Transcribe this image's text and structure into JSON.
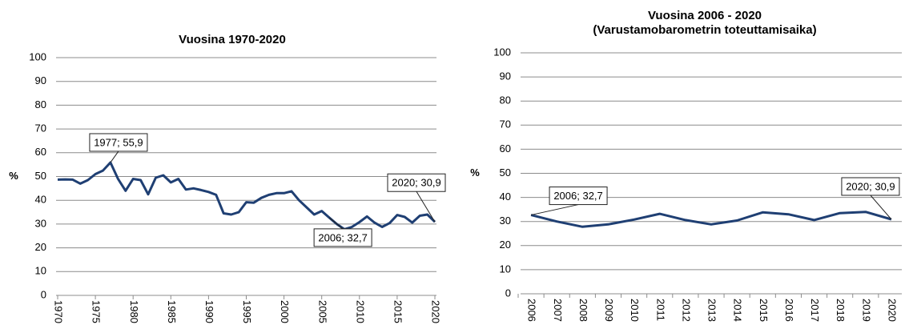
{
  "chart_data": [
    {
      "type": "line",
      "title": "Vuosina 1970-2020",
      "ylabel": "%",
      "x": [
        1970,
        1971,
        1972,
        1973,
        1974,
        1975,
        1976,
        1977,
        1978,
        1979,
        1980,
        1981,
        1982,
        1983,
        1984,
        1985,
        1986,
        1987,
        1988,
        1989,
        1990,
        1991,
        1992,
        1993,
        1994,
        1995,
        1996,
        1997,
        1998,
        1999,
        2000,
        2001,
        2002,
        2003,
        2004,
        2005,
        2006,
        2007,
        2008,
        2009,
        2010,
        2011,
        2012,
        2013,
        2014,
        2015,
        2016,
        2017,
        2018,
        2019,
        2020
      ],
      "values": [
        48.7,
        48.8,
        48.7,
        47,
        48.5,
        51,
        52.5,
        55.9,
        49,
        44,
        49,
        48.5,
        42.5,
        49.5,
        50.5,
        47.5,
        49,
        44.5,
        45,
        44.3,
        43.5,
        42.3,
        34.5,
        34,
        35,
        39.2,
        39,
        41,
        42.3,
        43,
        43,
        43.8,
        40,
        37,
        34,
        35.5,
        32.7,
        30,
        27.8,
        28.8,
        30.8,
        33.2,
        30.6,
        28.8,
        30.4,
        33.8,
        33,
        30.6,
        33.5,
        34,
        30.9
      ],
      "color": "#1f3f73",
      "xlim": [
        1970,
        2020
      ],
      "xticks": [
        1970,
        1975,
        1980,
        1985,
        1990,
        1995,
        2000,
        2005,
        2010,
        2015,
        2020
      ],
      "ylim": [
        0,
        100
      ],
      "yticks": [
        0,
        10,
        20,
        30,
        40,
        50,
        60,
        70,
        80,
        90,
        100
      ],
      "grid": true,
      "annotations": [
        {
          "text": "1977; 55,9",
          "x": 1977,
          "y": 55.9
        },
        {
          "text": "2006; 32,7",
          "x": 2006,
          "y": 32.7
        },
        {
          "text": "2020; 30,9",
          "x": 2020,
          "y": 30.9
        }
      ]
    },
    {
      "type": "line",
      "title": "Vuosina 2006 - 2020",
      "subtitle": "(Varustamobarometrin toteuttamisaika)",
      "ylabel": "%",
      "categories": [
        "2006",
        "2007",
        "2008",
        "2009",
        "2010",
        "2011",
        "2012",
        "2013",
        "2014",
        "2015",
        "2016",
        "2017",
        "2018",
        "2019",
        "2020"
      ],
      "values": [
        32.7,
        30,
        27.8,
        28.8,
        30.8,
        33.2,
        30.6,
        28.8,
        30.4,
        33.8,
        33,
        30.6,
        33.5,
        34,
        30.9
      ],
      "color": "#1f3f73",
      "ylim": [
        0,
        100
      ],
      "yticks": [
        0,
        10,
        20,
        30,
        40,
        50,
        60,
        70,
        80,
        90,
        100
      ],
      "grid": true,
      "annotations": [
        {
          "text": "2006; 32,7",
          "x": "2006",
          "y": 32.7
        },
        {
          "text": "2020; 30,9",
          "x": "2020",
          "y": 30.9
        }
      ]
    }
  ]
}
